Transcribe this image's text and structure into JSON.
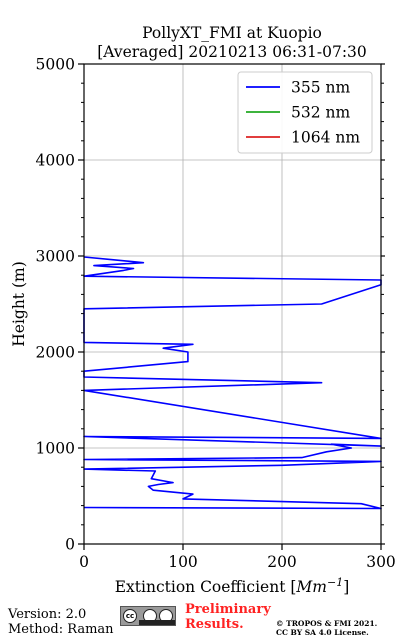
{
  "chart_data": {
    "type": "line",
    "title": "PollyXT_FMI at Kuopio",
    "subtitle": "[Averaged] 20210213 06:31-07:30",
    "xlabel_main": "Extinction Coefficient [",
    "xlabel_unit": "Mm",
    "xlabel_exp": "−1",
    "xlabel_end": "]",
    "ylabel": "Height (m)",
    "xlim": [
      0,
      300
    ],
    "ylim": [
      0,
      5000
    ],
    "xticks": [
      "0",
      "100",
      "200",
      "300"
    ],
    "yticks": [
      "0",
      "1000",
      "2000",
      "3000",
      "4000",
      "5000"
    ],
    "grid": true,
    "legend_position": "top-right",
    "series": [
      {
        "name": "355 nm",
        "color": "#0000ff",
        "x": [
          0,
          300,
          280,
          100,
          110,
          70,
          65,
          75,
          90,
          68,
          72,
          0,
          200,
          300,
          0,
          220,
          245,
          270,
          250,
          300,
          0,
          300,
          0,
          240,
          0,
          0,
          105,
          105,
          80,
          110,
          0,
          0,
          0,
          0,
          0,
          240,
          300,
          300,
          0,
          40,
          50,
          10,
          60,
          30,
          0
        ],
        "y": [
          380,
          370,
          420,
          470,
          520,
          560,
          600,
          620,
          640,
          680,
          760,
          780,
          820,
          860,
          880,
          900,
          960,
          1000,
          1040,
          1020,
          1120,
          1100,
          1600,
          1680,
          1740,
          1800,
          1900,
          2000,
          2040,
          2080,
          2100,
          2200,
          2300,
          2400,
          2450,
          2500,
          2700,
          2750,
          2790,
          2850,
          2870,
          2900,
          2930,
          2960,
          2990
        ]
      },
      {
        "name": "532 nm",
        "color": "#22aa22",
        "x": [],
        "y": []
      },
      {
        "name": "1064 nm",
        "color": "#dd2222",
        "x": [],
        "y": []
      }
    ]
  },
  "footer": {
    "version": "Version: 2.0",
    "method": "Method: Raman",
    "prelim_line1": "Preliminary",
    "prelim_line2": "Results.",
    "copyright_line1": "© TROPOS & FMI 2021.",
    "copyright_line2": "CC BY SA 4.0 License.",
    "license_badge_text": "cc"
  }
}
